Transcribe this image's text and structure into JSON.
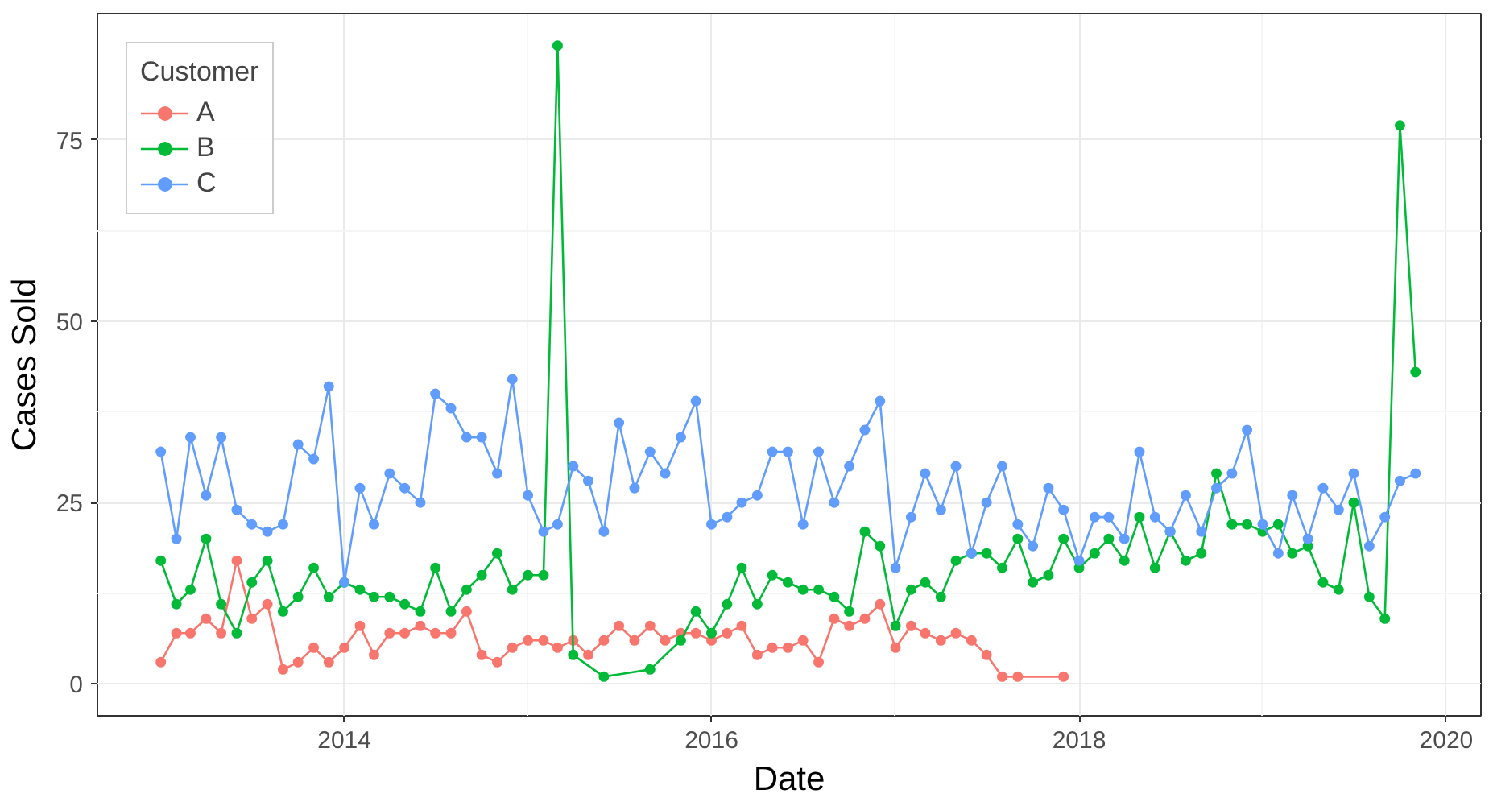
{
  "chart_data": {
    "type": "line",
    "xlabel": "Date",
    "ylabel": "Cases Sold",
    "legend_title": "Customer",
    "legend": "top left",
    "grid": true,
    "marker": "circle",
    "line_style": "solid",
    "xlim": [
      "2012-08-28",
      "2020-03-10"
    ],
    "ylim": [
      -4.4,
      92.4
    ],
    "xticks": [
      {
        "value": "2014-01-01",
        "label": "2014"
      },
      {
        "value": "2016-01-01",
        "label": "2016"
      },
      {
        "value": "2018-01-01",
        "label": "2018"
      },
      {
        "value": "2020-01-01",
        "label": "2020"
      }
    ],
    "yticks": [
      0,
      25,
      50,
      75
    ],
    "series": [
      {
        "name": "A",
        "color": "#f8766d",
        "x": [
          "2013-01",
          "2013-02",
          "2013-03",
          "2013-04",
          "2013-05",
          "2013-06",
          "2013-07",
          "2013-08",
          "2013-09",
          "2013-10",
          "2013-11",
          "2013-12",
          "2014-01",
          "2014-02",
          "2014-03",
          "2014-04",
          "2014-05",
          "2014-06",
          "2014-07",
          "2014-08",
          "2014-09",
          "2014-10",
          "2014-11",
          "2014-12",
          "2015-01",
          "2015-02",
          "2015-03",
          "2015-04",
          "2015-05",
          "2015-06",
          "2015-07",
          "2015-08",
          "2015-09",
          "2015-10",
          "2015-11",
          "2015-12",
          "2016-01",
          "2016-02",
          "2016-03",
          "2016-04",
          "2016-05",
          "2016-06",
          "2016-07",
          "2016-08",
          "2016-09",
          "2016-10",
          "2016-11",
          "2016-12",
          "2017-01",
          "2017-02",
          "2017-03",
          "2017-04",
          "2017-05",
          "2017-06",
          "2017-07",
          "2017-08",
          "2017-09",
          "2017-12"
        ],
        "values": [
          3,
          7,
          7,
          9,
          7,
          17,
          9,
          11,
          2,
          3,
          5,
          3,
          5,
          8,
          4,
          7,
          7,
          8,
          7,
          7,
          10,
          4,
          3,
          5,
          6,
          6,
          5,
          6,
          4,
          6,
          8,
          6,
          8,
          6,
          7,
          7,
          6,
          7,
          8,
          4,
          5,
          5,
          6,
          3,
          9,
          8,
          9,
          11,
          5,
          8,
          7,
          6,
          7,
          6,
          4,
          1,
          1,
          1
        ]
      },
      {
        "name": "B",
        "color": "#00ba38",
        "x": [
          "2013-01",
          "2013-02",
          "2013-03",
          "2013-04",
          "2013-05",
          "2013-06",
          "2013-07",
          "2013-08",
          "2013-09",
          "2013-10",
          "2013-11",
          "2013-12",
          "2014-01",
          "2014-02",
          "2014-03",
          "2014-04",
          "2014-05",
          "2014-06",
          "2014-07",
          "2014-08",
          "2014-09",
          "2014-10",
          "2014-11",
          "2014-12",
          "2015-01",
          "2015-02",
          "2015-03",
          "2015-04",
          "2015-06",
          "2015-09",
          "2015-11",
          "2015-12",
          "2016-01",
          "2016-02",
          "2016-03",
          "2016-04",
          "2016-05",
          "2016-06",
          "2016-07",
          "2016-08",
          "2016-09",
          "2016-10",
          "2016-11",
          "2016-12",
          "2017-01",
          "2017-02",
          "2017-03",
          "2017-04",
          "2017-05",
          "2017-06",
          "2017-07",
          "2017-08",
          "2017-09",
          "2017-10",
          "2017-11",
          "2017-12",
          "2018-01",
          "2018-02",
          "2018-03",
          "2018-04",
          "2018-05",
          "2018-06",
          "2018-07",
          "2018-08",
          "2018-09",
          "2018-10",
          "2018-11",
          "2018-12",
          "2019-01",
          "2019-02",
          "2019-03",
          "2019-04",
          "2019-05",
          "2019-06",
          "2019-07",
          "2019-08",
          "2019-09",
          "2019-10",
          "2019-11"
        ],
        "values": [
          17,
          11,
          13,
          20,
          11,
          7,
          14,
          17,
          10,
          12,
          16,
          12,
          14,
          13,
          12,
          12,
          11,
          10,
          16,
          10,
          13,
          15,
          18,
          13,
          15,
          15,
          88,
          4,
          1,
          2,
          6,
          10,
          7,
          11,
          16,
          11,
          15,
          14,
          13,
          13,
          12,
          10,
          21,
          19,
          8,
          13,
          14,
          12,
          17,
          18,
          18,
          16,
          20,
          14,
          15,
          20,
          16,
          18,
          20,
          17,
          23,
          16,
          21,
          17,
          18,
          29,
          22,
          22,
          21,
          22,
          18,
          19,
          14,
          13,
          25,
          12,
          9,
          77,
          43
        ]
      },
      {
        "name": "C",
        "color": "#619cff",
        "x": [
          "2013-01",
          "2013-02",
          "2013-03",
          "2013-04",
          "2013-05",
          "2013-06",
          "2013-07",
          "2013-08",
          "2013-09",
          "2013-10",
          "2013-11",
          "2013-12",
          "2014-01",
          "2014-02",
          "2014-03",
          "2014-04",
          "2014-05",
          "2014-06",
          "2014-07",
          "2014-08",
          "2014-09",
          "2014-10",
          "2014-11",
          "2014-12",
          "2015-01",
          "2015-02",
          "2015-03",
          "2015-04",
          "2015-05",
          "2015-06",
          "2015-07",
          "2015-08",
          "2015-09",
          "2015-10",
          "2015-11",
          "2015-12",
          "2016-01",
          "2016-02",
          "2016-03",
          "2016-04",
          "2016-05",
          "2016-06",
          "2016-07",
          "2016-08",
          "2016-09",
          "2016-10",
          "2016-11",
          "2016-12",
          "2017-01",
          "2017-02",
          "2017-03",
          "2017-04",
          "2017-05",
          "2017-06",
          "2017-07",
          "2017-08",
          "2017-09",
          "2017-10",
          "2017-11",
          "2017-12",
          "2018-01",
          "2018-02",
          "2018-03",
          "2018-04",
          "2018-05",
          "2018-06",
          "2018-07",
          "2018-08",
          "2018-09",
          "2018-10",
          "2018-11",
          "2018-12",
          "2019-01",
          "2019-02",
          "2019-03",
          "2019-04",
          "2019-05",
          "2019-06",
          "2019-07",
          "2019-08",
          "2019-09",
          "2019-10",
          "2019-11"
        ],
        "values": [
          32,
          20,
          34,
          26,
          34,
          24,
          22,
          21,
          22,
          33,
          31,
          41,
          14,
          27,
          22,
          29,
          27,
          25,
          40,
          38,
          34,
          34,
          29,
          42,
          26,
          21,
          22,
          30,
          28,
          21,
          36,
          27,
          32,
          29,
          34,
          39,
          22,
          23,
          25,
          26,
          32,
          32,
          22,
          32,
          25,
          30,
          35,
          39,
          16,
          23,
          29,
          24,
          30,
          18,
          25,
          30,
          22,
          19,
          27,
          24,
          17,
          23,
          23,
          20,
          32,
          23,
          21,
          26,
          21,
          27,
          29,
          35,
          22,
          18,
          26,
          20,
          27,
          24,
          29,
          19,
          23,
          28,
          29
        ]
      }
    ]
  }
}
